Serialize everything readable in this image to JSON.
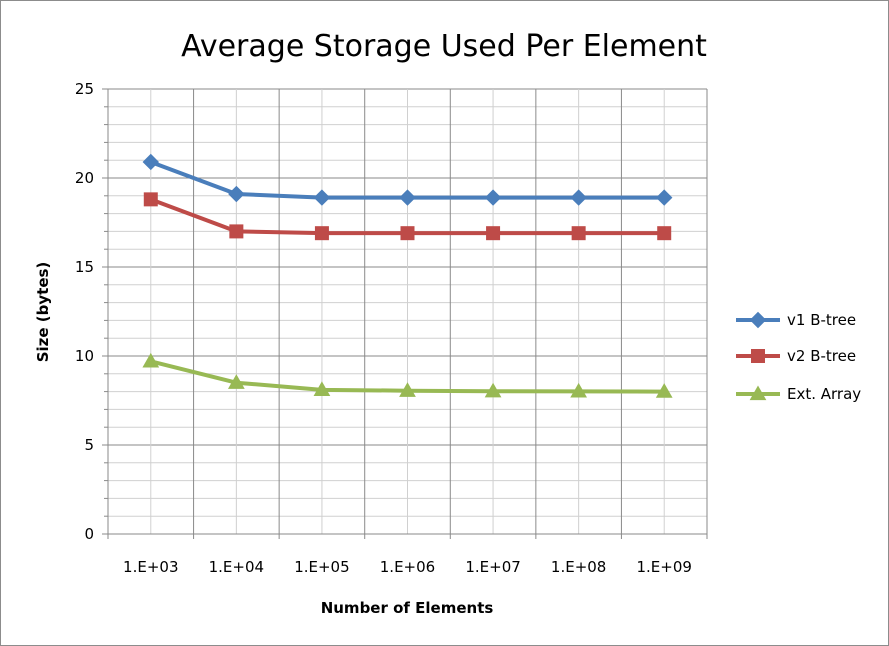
{
  "chart_data": {
    "type": "line",
    "title": "Average Storage Used Per Element",
    "xlabel": "Number of Elements",
    "ylabel": "Size (bytes)",
    "categories": [
      "1.E+03",
      "1.E+04",
      "1.E+05",
      "1.E+06",
      "1.E+07",
      "1.E+08",
      "1.E+09"
    ],
    "ylim": [
      0,
      25
    ],
    "yticks": [
      0,
      5,
      10,
      15,
      20,
      25
    ],
    "grid": true,
    "legend_position": "right",
    "series": [
      {
        "name": "v1 B-tree",
        "color": "#4a7ebb",
        "marker": "diamond",
        "values": [
          20.9,
          19.1,
          18.9,
          18.9,
          18.9,
          18.9,
          18.9
        ]
      },
      {
        "name": "v2 B-tree",
        "color": "#be4b48",
        "marker": "square",
        "values": [
          18.8,
          17.0,
          16.9,
          16.9,
          16.9,
          16.9,
          16.9
        ]
      },
      {
        "name": "Ext. Array",
        "color": "#98b954",
        "marker": "triangle",
        "values": [
          9.7,
          8.5,
          8.1,
          8.05,
          8.02,
          8.01,
          8.0
        ]
      }
    ]
  }
}
